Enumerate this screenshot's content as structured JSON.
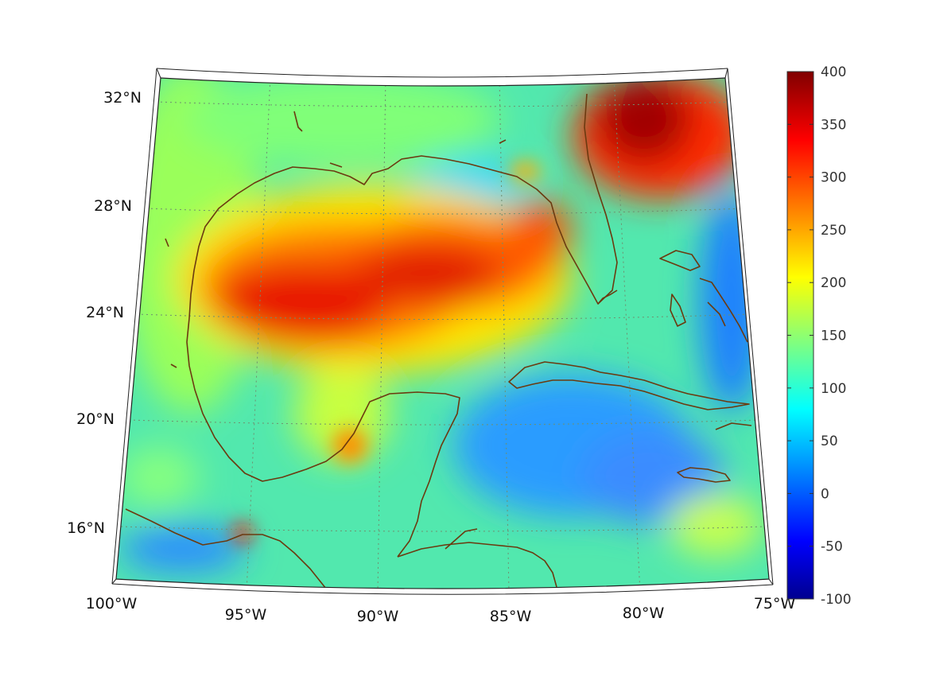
{
  "map": {
    "projection": "conic",
    "region": "Gulf of Mexico and Caribbean",
    "field_colormap": "jet",
    "graticule": "dotted"
  },
  "axes": {
    "longitude_labels": [
      "100°W",
      "95°W",
      "90°W",
      "85°W",
      "80°W",
      "75°W"
    ],
    "latitude_labels": [
      "32°N",
      "28°N",
      "24°N",
      "20°N",
      "16°N"
    ]
  },
  "colorbar": {
    "min": -100,
    "max": 400,
    "tick_labels": [
      "400",
      "350",
      "300",
      "250",
      "200",
      "150",
      "100",
      "50",
      "0",
      "-50",
      "-100"
    ],
    "colors": [
      "#00008f",
      "#0000ff",
      "#00ffff",
      "#ffff00",
      "#ff0000",
      "#800000"
    ]
  },
  "colors": {
    "coastline": "#6b3a10",
    "grid": "#6f8f6f",
    "frame": "#222222"
  }
}
